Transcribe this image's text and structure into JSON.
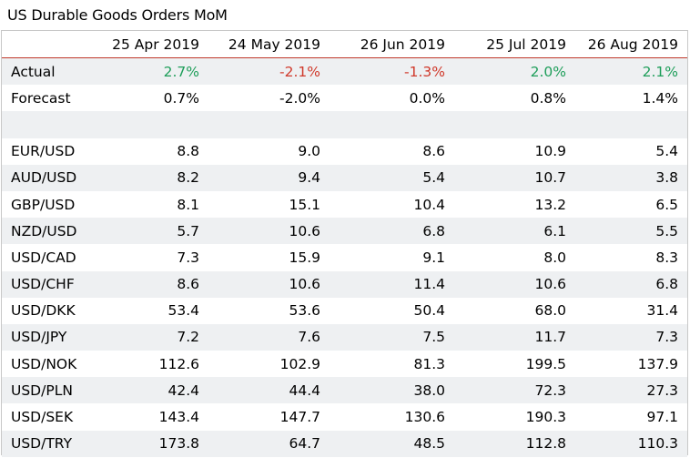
{
  "title": "US Durable Goods Orders MoM",
  "chart_data": {
    "type": "table",
    "title": "US Durable Goods Orders MoM",
    "columns": [
      "25 Apr 2019",
      "24 May 2019",
      "26 Jun 2019",
      "25 Jul 2019",
      "26 Aug 2019"
    ],
    "actual": {
      "label": "Actual",
      "values": [
        "2.7%",
        "-2.1%",
        "-1.3%",
        "2.0%",
        "2.1%"
      ],
      "signs": [
        "pos",
        "neg",
        "neg",
        "pos",
        "pos"
      ]
    },
    "forecast": {
      "label": "Forecast",
      "values": [
        "0.7%",
        "-2.0%",
        "0.0%",
        "0.8%",
        "1.4%"
      ]
    },
    "rows": [
      {
        "label": "EUR/USD",
        "values": [
          "8.8",
          "9.0",
          "8.6",
          "10.9",
          "5.4"
        ]
      },
      {
        "label": "AUD/USD",
        "values": [
          "8.2",
          "9.4",
          "5.4",
          "10.7",
          "3.8"
        ]
      },
      {
        "label": "GBP/USD",
        "values": [
          "8.1",
          "15.1",
          "10.4",
          "13.2",
          "6.5"
        ]
      },
      {
        "label": "NZD/USD",
        "values": [
          "5.7",
          "10.6",
          "6.8",
          "6.1",
          "5.5"
        ]
      },
      {
        "label": "USD/CAD",
        "values": [
          "7.3",
          "15.9",
          "9.1",
          "8.0",
          "8.3"
        ]
      },
      {
        "label": "USD/CHF",
        "values": [
          "8.6",
          "10.6",
          "11.4",
          "10.6",
          "6.8"
        ]
      },
      {
        "label": "USD/DKK",
        "values": [
          "53.4",
          "53.6",
          "50.4",
          "68.0",
          "31.4"
        ]
      },
      {
        "label": "USD/JPY",
        "values": [
          "7.2",
          "7.6",
          "7.5",
          "11.7",
          "7.3"
        ]
      },
      {
        "label": "USD/NOK",
        "values": [
          "112.6",
          "102.9",
          "81.3",
          "199.5",
          "137.9"
        ]
      },
      {
        "label": "USD/PLN",
        "values": [
          "42.4",
          "44.4",
          "38.0",
          "72.3",
          "27.3"
        ]
      },
      {
        "label": "USD/SEK",
        "values": [
          "143.4",
          "147.7",
          "130.6",
          "190.3",
          "97.1"
        ]
      },
      {
        "label": "USD/TRY",
        "values": [
          "173.8",
          "64.7",
          "48.5",
          "112.8",
          "110.3"
        ]
      }
    ]
  },
  "colors": {
    "positive": "#1e9e5a",
    "negative": "#d0392b",
    "shade": "#eef0f2",
    "actual_rule": "#c0392b"
  }
}
